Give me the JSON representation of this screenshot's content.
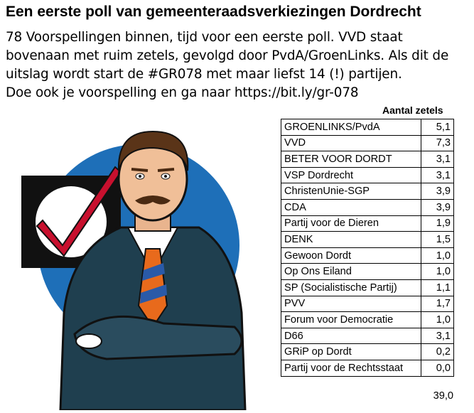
{
  "title": "Een eerste poll van gemeenteraadsverkiezingen Dordrecht",
  "intro_lines": [
    "78 Voorspellingen binnen, tijd voor een eerste poll. VVD staat",
    "bovenaan met ruim zetels, gevolgd door PvdA/GroenLinks. Als dit de",
    "uitslag wordt start de #GR078 met maar liefst 14 (!) partijen.",
    "Doe ook je voorspelling en ga naar https://bit.ly/gr-078"
  ],
  "table": {
    "header": "Aantal zetels",
    "rows": [
      {
        "party": "GROENLINKS/PvdA",
        "seats": "5,1"
      },
      {
        "party": "VVD",
        "seats": "7,3"
      },
      {
        "party": "BETER VOOR DORDT",
        "seats": "3,1"
      },
      {
        "party": "VSP Dordrecht",
        "seats": "3,1"
      },
      {
        "party": "ChristenUnie-SGP",
        "seats": "3,9"
      },
      {
        "party": "CDA",
        "seats": "3,9"
      },
      {
        "party": "Partij voor de Dieren",
        "seats": "1,9"
      },
      {
        "party": "DENK",
        "seats": "1,5"
      },
      {
        "party": "Gewoon Dordt",
        "seats": "1,0"
      },
      {
        "party": "Op Ons Eiland",
        "seats": "1,0"
      },
      {
        "party": "SP (Socialistische Partij)",
        "seats": "1,1"
      },
      {
        "party": "PVV",
        "seats": "1,7"
      },
      {
        "party": "Forum voor Democratie",
        "seats": "1,0"
      },
      {
        "party": "D66",
        "seats": "3,1"
      },
      {
        "party": "GRiP op Dordt",
        "seats": "0,2"
      },
      {
        "party": "Partij voor de Rechtsstaat",
        "seats": "0,0"
      }
    ],
    "total": "39,0"
  },
  "colors": {
    "circle": "#1e6fb8",
    "check": "#c8102e",
    "suit": "#1f3f4f",
    "tie_orange": "#e86a1c",
    "tie_blue": "#2a5aa8"
  }
}
